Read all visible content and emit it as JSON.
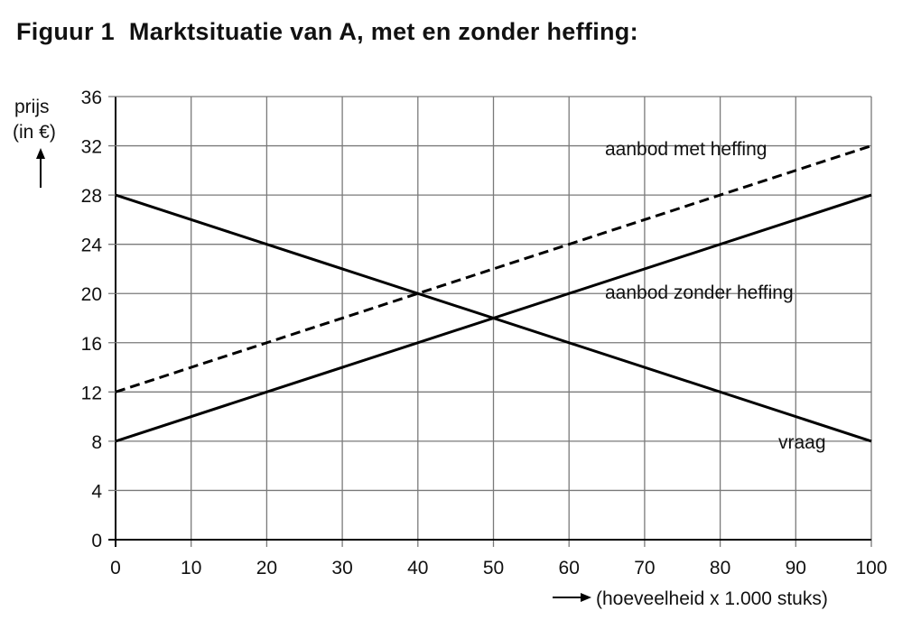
{
  "figure": {
    "number": "Figuur 1",
    "title": "Marktsituatie van A, met en zonder heffing:"
  },
  "chart_data": {
    "type": "line",
    "ylabel_line1": "prijs",
    "ylabel_line2": "(in €)",
    "xlabel": "(hoeveelheid x 1.000 stuks)",
    "xlim": [
      0,
      100
    ],
    "ylim": [
      0,
      36
    ],
    "x_ticks": [
      0,
      10,
      20,
      30,
      40,
      50,
      60,
      70,
      80,
      90,
      100
    ],
    "y_ticks": [
      0,
      4,
      8,
      12,
      16,
      20,
      24,
      28,
      32,
      36
    ],
    "grid": true,
    "series": [
      {
        "name": "vraag",
        "style": "solid",
        "x": [
          0,
          100
        ],
        "y": [
          28,
          8
        ]
      },
      {
        "name": "aanbod zonder heffing",
        "style": "solid",
        "x": [
          0,
          100
        ],
        "y": [
          8,
          28
        ]
      },
      {
        "name": "aanbod met heffing",
        "style": "dashed",
        "x": [
          0,
          100
        ],
        "y": [
          12,
          32
        ]
      }
    ],
    "colors": {
      "line": "#000000",
      "grid": "#7a7a7a"
    }
  }
}
